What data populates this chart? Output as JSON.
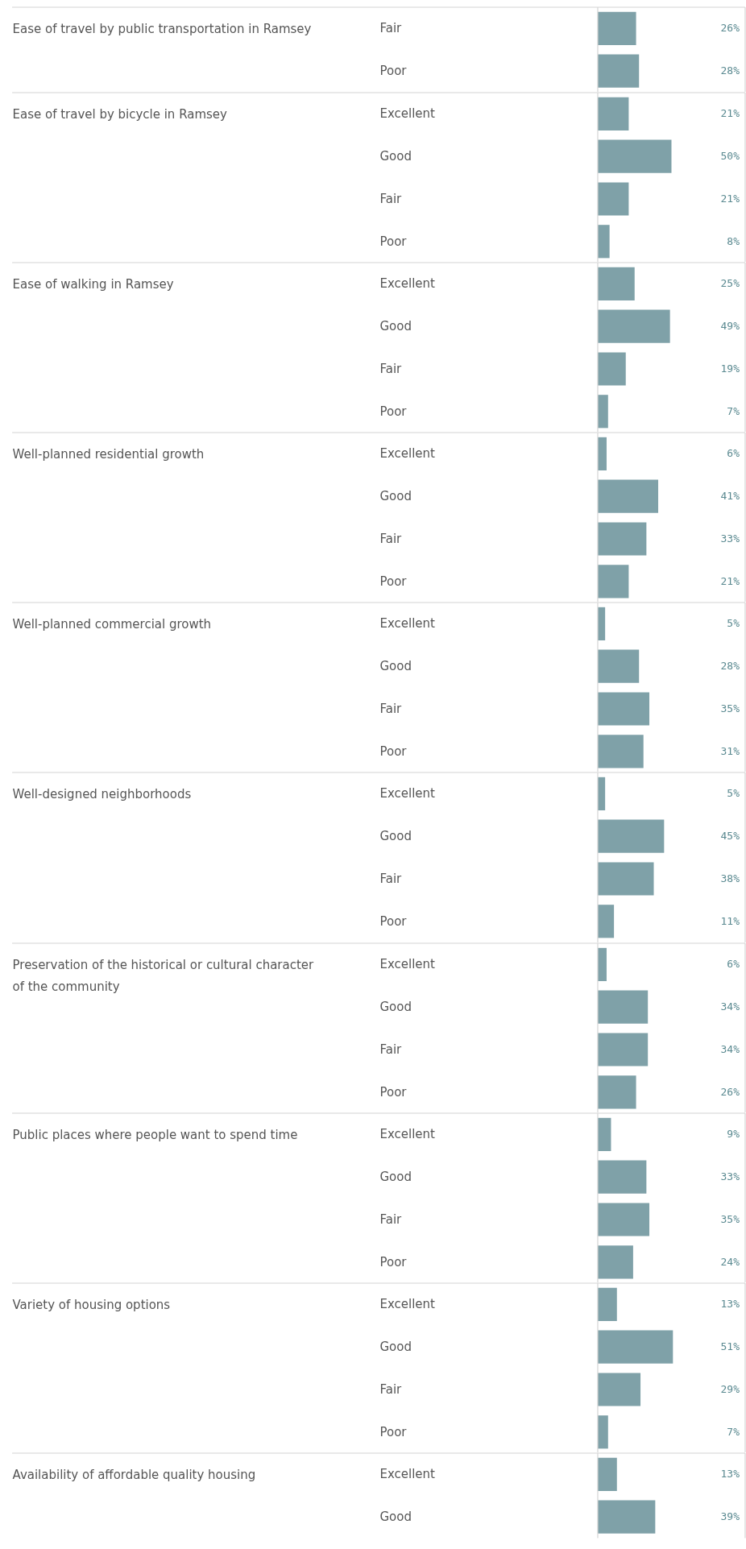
{
  "chart_data": [
    {
      "type": "bar",
      "orientation": "horizontal",
      "ylabel": "Ease of travel by public transportation in Ramsey",
      "categories": [
        "Fair",
        "Poor"
      ],
      "values": [
        26,
        28
      ],
      "value_labels": [
        "26%",
        "28%"
      ],
      "color": "#7fa1a8",
      "xlim": [
        0,
        100
      ],
      "tick_labels": "y"
    },
    {
      "type": "bar",
      "orientation": "horizontal",
      "ylabel": "Ease of travel by bicycle in Ramsey",
      "categories": [
        "Excellent",
        "Good",
        "Fair",
        "Poor"
      ],
      "values": [
        21,
        50,
        21,
        8
      ],
      "value_labels": [
        "21%",
        "50%",
        "21%",
        "8%"
      ],
      "color": "#7fa1a8",
      "xlim": [
        0,
        100
      ],
      "tick_labels": "y"
    },
    {
      "type": "bar",
      "orientation": "horizontal",
      "ylabel": "Ease of walking in Ramsey",
      "categories": [
        "Excellent",
        "Good",
        "Fair",
        "Poor"
      ],
      "values": [
        25,
        49,
        19,
        7
      ],
      "value_labels": [
        "25%",
        "49%",
        "19%",
        "7%"
      ],
      "color": "#7fa1a8",
      "xlim": [
        0,
        100
      ],
      "tick_labels": "y"
    },
    {
      "type": "bar",
      "orientation": "horizontal",
      "ylabel": "Well-planned residential growth",
      "categories": [
        "Excellent",
        "Good",
        "Fair",
        "Poor"
      ],
      "values": [
        6,
        41,
        33,
        21
      ],
      "value_labels": [
        "6%",
        "41%",
        "33%",
        "21%"
      ],
      "color": "#7fa1a8",
      "xlim": [
        0,
        100
      ],
      "tick_labels": "y"
    },
    {
      "type": "bar",
      "orientation": "horizontal",
      "ylabel": "Well-planned commercial growth",
      "categories": [
        "Excellent",
        "Good",
        "Fair",
        "Poor"
      ],
      "values": [
        5,
        28,
        35,
        31
      ],
      "value_labels": [
        "5%",
        "28%",
        "35%",
        "31%"
      ],
      "color": "#7fa1a8",
      "xlim": [
        0,
        100
      ],
      "tick_labels": "y"
    },
    {
      "type": "bar",
      "orientation": "horizontal",
      "ylabel": "Well-designed neighborhoods",
      "categories": [
        "Excellent",
        "Good",
        "Fair",
        "Poor"
      ],
      "values": [
        5,
        45,
        38,
        11
      ],
      "value_labels": [
        "5%",
        "45%",
        "38%",
        "11%"
      ],
      "color": "#7fa1a8",
      "xlim": [
        0,
        100
      ],
      "tick_labels": "y"
    },
    {
      "type": "bar",
      "orientation": "horizontal",
      "ylabel": "Preservation of the historical or cultural character of the community",
      "categories": [
        "Excellent",
        "Good",
        "Fair",
        "Poor"
      ],
      "values": [
        6,
        34,
        34,
        26
      ],
      "value_labels": [
        "6%",
        "34%",
        "34%",
        "26%"
      ],
      "color": "#7fa1a8",
      "xlim": [
        0,
        100
      ],
      "tick_labels": "y"
    },
    {
      "type": "bar",
      "orientation": "horizontal",
      "ylabel": "Public places where people want to spend time",
      "categories": [
        "Excellent",
        "Good",
        "Fair",
        "Poor"
      ],
      "values": [
        9,
        33,
        35,
        24
      ],
      "value_labels": [
        "9%",
        "33%",
        "35%",
        "24%"
      ],
      "color": "#7fa1a8",
      "xlim": [
        0,
        100
      ],
      "tick_labels": "y"
    },
    {
      "type": "bar",
      "orientation": "horizontal",
      "ylabel": "Variety of housing options",
      "categories": [
        "Excellent",
        "Good",
        "Fair",
        "Poor"
      ],
      "values": [
        13,
        51,
        29,
        7
      ],
      "value_labels": [
        "13%",
        "51%",
        "29%",
        "7%"
      ],
      "color": "#7fa1a8",
      "xlim": [
        0,
        100
      ],
      "tick_labels": "y"
    },
    {
      "type": "bar",
      "orientation": "horizontal",
      "ylabel": "Availability of affordable quality housing",
      "categories": [
        "Excellent",
        "Good"
      ],
      "values": [
        13,
        39
      ],
      "value_labels": [
        "13%",
        "39%"
      ],
      "color": "#7fa1a8",
      "xlim": [
        0,
        100
      ],
      "tick_labels": "y"
    }
  ]
}
